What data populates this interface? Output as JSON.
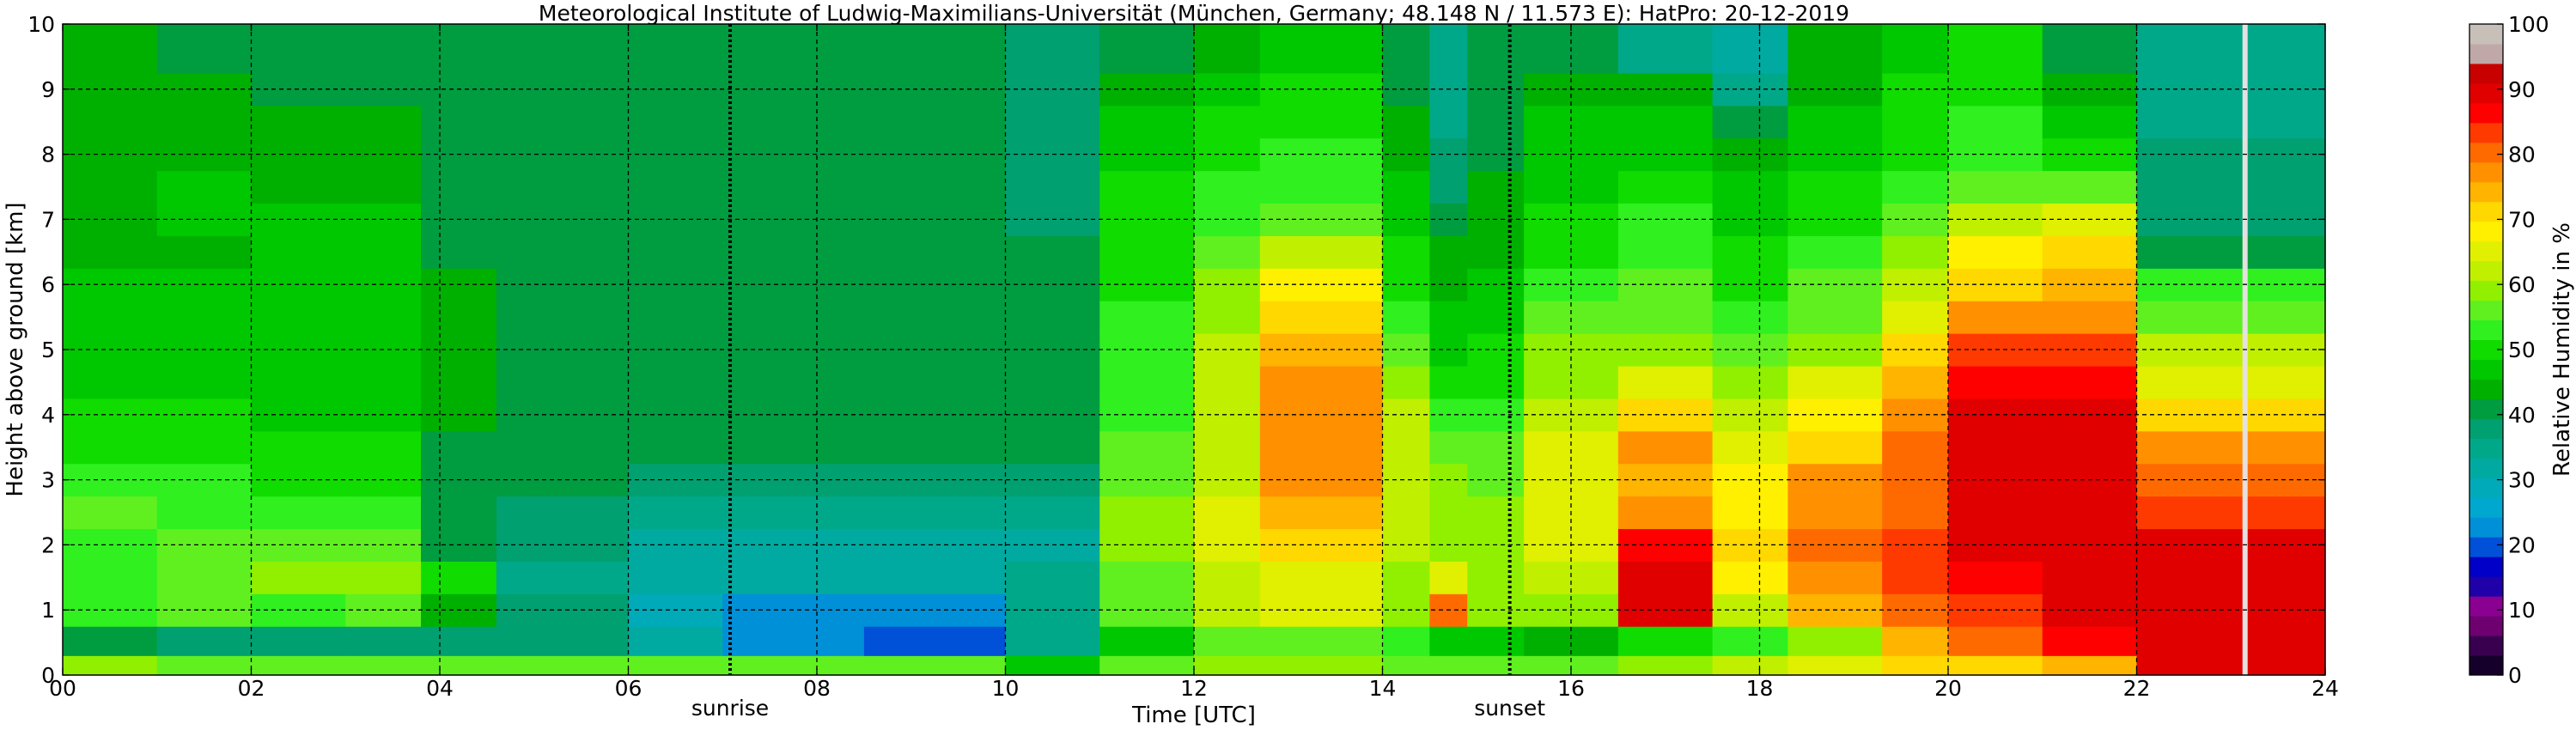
{
  "chart_data": {
    "type": "heatmap",
    "title": "Meteorological Institute of Ludwig-Maximilians-Universität (München, Germany; 48.148 N / 11.573 E):    HatPro: 20-12-2019",
    "xlabel": "Time [UTC]",
    "ylabel": "Height above ground [km]",
    "colorbar_label": "Relative Humidity in %",
    "xlim": [
      0,
      24
    ],
    "ylim": [
      0,
      10
    ],
    "x_ticks": [
      "00",
      "02",
      "04",
      "06",
      "08",
      "10",
      "12",
      "14",
      "16",
      "18",
      "20",
      "22",
      "24"
    ],
    "x_tick_values": [
      0,
      2,
      4,
      6,
      8,
      10,
      12,
      14,
      16,
      18,
      20,
      22,
      24
    ],
    "y_ticks": [
      "0",
      "1",
      "2",
      "3",
      "4",
      "5",
      "6",
      "7",
      "8",
      "9",
      "10"
    ],
    "y_tick_values": [
      0,
      1,
      2,
      3,
      4,
      5,
      6,
      7,
      8,
      9,
      10
    ],
    "grid": true,
    "colorbar": {
      "ticks": [
        "0",
        "10",
        "20",
        "30",
        "40",
        "50",
        "60",
        "70",
        "80",
        "90",
        "100"
      ],
      "tick_values": [
        0,
        10,
        20,
        30,
        40,
        50,
        60,
        70,
        80,
        90,
        100
      ],
      "colors": [
        "#14002a",
        "#3a0050",
        "#6e0070",
        "#8a0090",
        "#2000a8",
        "#0000c8",
        "#0050d8",
        "#0090d8",
        "#00a8d0",
        "#00aab8",
        "#00aaa0",
        "#00a88a",
        "#00a070",
        "#009c40",
        "#00b000",
        "#00c800",
        "#10dc00",
        "#30f020",
        "#60f020",
        "#90f000",
        "#c0f000",
        "#e0f000",
        "#fff000",
        "#ffd800",
        "#ffb400",
        "#ff9000",
        "#ff6a00",
        "#ff3a00",
        "#ff0000",
        "#e00000",
        "#c80000",
        "#c0a8a8",
        "#c8c0b8"
      ]
    },
    "events": [
      {
        "label": "sunrise",
        "time": 7.08
      },
      {
        "label": "sunset",
        "time": 15.35
      }
    ],
    "missing_column_time": 23.15,
    "rows_height_km": [
      0.1,
      0.5,
      1.0,
      1.5,
      2.0,
      2.5,
      3.0,
      3.5,
      4.0,
      4.5,
      5.0,
      5.5,
      6.0,
      6.5,
      7.0,
      7.5,
      8.0,
      8.5,
      9.0,
      9.5
    ],
    "columns": [
      {
        "t0": 0.0,
        "t1": 1.0,
        "rh": [
          58,
          40,
          52,
          54,
          54,
          55,
          52,
          50,
          49,
          48,
          47,
          47,
          46,
          45,
          45,
          45,
          45,
          45,
          44,
          43
        ]
      },
      {
        "t0": 1.0,
        "t1": 2.0,
        "rh": [
          57,
          39,
          55,
          56,
          56,
          54,
          52,
          50,
          49,
          48,
          47,
          47,
          46,
          45,
          46,
          46,
          45,
          44,
          43,
          42
        ]
      },
      {
        "t0": 2.0,
        "t1": 3.0,
        "rh": [
          57,
          39,
          54,
          58,
          55,
          52,
          49,
          49,
          48,
          47,
          47,
          47,
          47,
          46,
          46,
          45,
          44,
          43,
          42,
          42
        ]
      },
      {
        "t0": 3.0,
        "t1": 3.8,
        "rh": [
          57,
          39,
          56,
          58,
          55,
          52,
          50,
          49,
          48,
          47,
          47,
          47,
          47,
          46,
          46,
          45,
          44,
          43,
          42,
          42
        ]
      },
      {
        "t0": 3.8,
        "t1": 4.6,
        "rh": [
          57,
          38,
          45,
          50,
          40,
          40,
          40,
          42,
          43,
          44,
          44,
          44,
          43,
          42,
          41,
          41,
          40,
          40,
          40,
          40
        ]
      },
      {
        "t0": 4.6,
        "t1": 6.0,
        "rh": [
          57,
          37,
          37,
          35,
          38,
          39,
          40,
          40,
          41,
          42,
          42,
          42,
          41,
          41,
          40,
          40,
          40,
          40,
          40,
          40
        ]
      },
      {
        "t0": 6.0,
        "t1": 7.0,
        "rh": [
          55,
          31,
          29,
          33,
          33,
          35,
          38,
          40,
          40,
          40,
          40,
          40,
          40,
          40,
          40,
          40,
          40,
          40,
          40,
          40
        ]
      },
      {
        "t0": 7.0,
        "t1": 8.5,
        "rh": [
          55,
          22,
          22,
          31,
          33,
          34,
          37,
          40,
          40,
          40,
          40,
          40,
          40,
          40,
          40,
          40,
          40,
          40,
          40,
          40
        ]
      },
      {
        "t0": 8.5,
        "t1": 10.0,
        "rh": [
          55,
          21,
          22,
          32,
          33,
          34,
          37,
          40,
          40,
          40,
          40,
          40,
          40,
          40,
          40,
          40,
          40,
          40,
          40,
          40
        ]
      },
      {
        "t0": 10.0,
        "t1": 11.0,
        "rh": [
          48,
          34,
          34,
          34,
          33,
          34,
          38,
          40,
          40,
          40,
          40,
          40,
          40,
          40,
          39,
          39,
          38,
          38,
          38,
          38
        ]
      },
      {
        "t0": 11.0,
        "t1": 12.0,
        "rh": [
          55,
          48,
          55,
          57,
          58,
          58,
          56,
          55,
          53,
          53,
          52,
          52,
          51,
          50,
          50,
          49,
          48,
          46,
          44,
          41
        ]
      },
      {
        "t0": 12.0,
        "t1": 12.7,
        "rh": [
          58,
          55,
          62,
          63,
          65,
          64,
          63,
          62,
          62,
          62,
          61,
          60,
          59,
          56,
          54,
          52,
          51,
          50,
          48,
          45
        ]
      },
      {
        "t0": 12.7,
        "t1": 14.0,
        "rh": [
          58,
          57,
          64,
          66,
          70,
          73,
          76,
          78,
          78,
          76,
          74,
          72,
          67,
          62,
          57,
          53,
          52,
          51,
          49,
          46
        ]
      },
      {
        "t0": 14.0,
        "t1": 14.5,
        "rh": [
          55,
          52,
          58,
          60,
          62,
          63,
          63,
          62,
          61,
          59,
          56,
          53,
          51,
          49,
          47,
          46,
          45,
          44,
          42,
          40
        ]
      },
      {
        "t0": 14.5,
        "t1": 14.9,
        "rh": [
          55,
          48,
          80,
          66,
          60,
          60,
          58,
          56,
          52,
          50,
          48,
          46,
          45,
          43,
          41,
          39,
          37,
          36,
          35,
          34
        ]
      },
      {
        "t0": 14.9,
        "t1": 15.5,
        "rh": [
          55,
          46,
          58,
          60,
          59,
          58,
          57,
          55,
          53,
          51,
          49,
          47,
          46,
          45,
          44,
          43,
          42,
          42,
          41,
          40
        ]
      },
      {
        "t0": 15.5,
        "t1": 16.5,
        "rh": [
          56,
          44,
          58,
          61,
          64,
          66,
          66,
          64,
          62,
          60,
          58,
          55,
          53,
          51,
          50,
          48,
          47,
          46,
          44,
          42
        ]
      },
      {
        "t0": 16.5,
        "t1": 17.5,
        "rh": [
          60,
          50,
          88,
          90,
          86,
          78,
          73,
          78,
          72,
          64,
          60,
          57,
          55,
          53,
          52,
          50,
          48,
          46,
          44,
          36
        ]
      },
      {
        "t0": 17.5,
        "t1": 18.3,
        "rh": [
          62,
          54,
          62,
          68,
          70,
          69,
          67,
          65,
          62,
          58,
          55,
          52,
          50,
          49,
          48,
          46,
          44,
          40,
          36,
          33
        ]
      },
      {
        "t0": 18.3,
        "t1": 19.3,
        "rh": [
          65,
          60,
          75,
          78,
          80,
          78,
          76,
          72,
          68,
          64,
          60,
          57,
          55,
          53,
          51,
          49,
          47,
          46,
          45,
          44
        ]
      },
      {
        "t0": 19.3,
        "t1": 20.0,
        "rh": [
          70,
          75,
          80,
          82,
          82,
          80,
          80,
          80,
          78,
          74,
          70,
          66,
          62,
          58,
          55,
          53,
          51,
          50,
          49,
          48
        ]
      },
      {
        "t0": 20.0,
        "t1": 21.0,
        "rh": [
          72,
          80,
          82,
          86,
          88,
          90,
          90,
          90,
          88,
          86,
          82,
          77,
          72,
          67,
          62,
          57,
          54,
          52,
          50,
          49
        ]
      },
      {
        "t0": 21.0,
        "t1": 22.0,
        "rh": [
          74,
          86,
          88,
          90,
          90,
          90,
          90,
          90,
          89,
          86,
          82,
          78,
          74,
          70,
          64,
          56,
          50,
          46,
          44,
          42
        ]
      },
      {
        "t0": 22.0,
        "t1": 24.0,
        "rh": [
          90,
          90,
          90,
          90,
          88,
          84,
          80,
          76,
          70,
          66,
          62,
          56,
          52,
          40,
          37,
          37,
          37,
          36,
          34,
          34
        ]
      }
    ]
  }
}
